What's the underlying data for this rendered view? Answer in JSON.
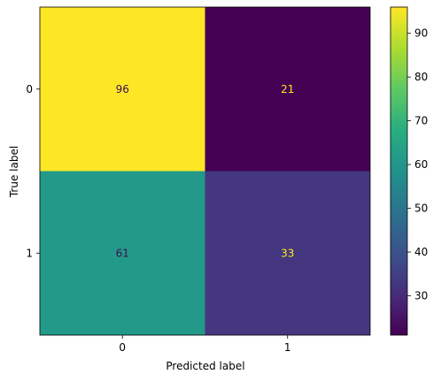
{
  "chart_data": {
    "type": "heatmap",
    "title": "",
    "xlabel": "Predicted label",
    "ylabel": "True label",
    "x_categories": [
      "0",
      "1"
    ],
    "y_categories": [
      "0",
      "1"
    ],
    "values": [
      [
        96,
        21
      ],
      [
        61,
        33
      ]
    ],
    "colormap": "viridis",
    "colorbar": {
      "min": 21,
      "max": 96,
      "ticks": [
        30,
        40,
        50,
        60,
        70,
        80,
        90
      ]
    },
    "text_colors": {
      "on_light": "#3b0f4f",
      "on_dark": "#fde725"
    },
    "grid": false
  }
}
